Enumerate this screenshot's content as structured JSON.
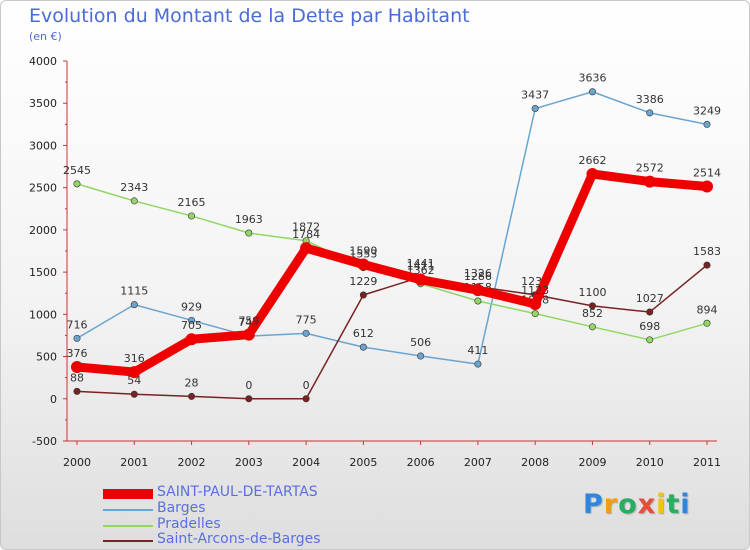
{
  "header": {
    "title": "Evolution du Montant de la Dette par Habitant",
    "subtitle": "(en €)"
  },
  "logo": {
    "text": "Proxiti",
    "letter_colors": [
      "#2e86de",
      "#f39c12",
      "#27ae60",
      "#e74c3c",
      "#f1c40f",
      "#27ae60",
      "#2e86de"
    ]
  },
  "chart_data": {
    "type": "line",
    "x": [
      "2000",
      "2001",
      "2002",
      "2003",
      "2004",
      "2005",
      "2006",
      "2007",
      "2008",
      "2009",
      "2010",
      "2011"
    ],
    "ylim": [
      -500,
      4000
    ],
    "yticks": [
      -500,
      0,
      500,
      1000,
      1500,
      2000,
      2500,
      3000,
      3500,
      4000
    ],
    "grid": false,
    "legend_position": "bottom-left",
    "series": [
      {
        "name": "SAINT-PAUL-DE-TARTAS",
        "color": "#ee0000",
        "thick": true,
        "values": [
          376,
          316,
          705,
          759,
          1784,
          1590,
          1411,
          1286,
          1123,
          2662,
          2572,
          2514
        ]
      },
      {
        "name": "Barges",
        "color": "#6aa5cf",
        "thick": false,
        "values": [
          716,
          1115,
          929,
          742,
          775,
          612,
          506,
          411,
          3437,
          3636,
          3386,
          3249
        ]
      },
      {
        "name": "Pradelles",
        "color": "#92d665",
        "thick": false,
        "values": [
          2545,
          2343,
          2165,
          1963,
          1872,
          1553,
          1362,
          1158,
          1008,
          852,
          698,
          894
        ]
      },
      {
        "name": "Saint-Arcons-de-Barges",
        "color": "#7a2222",
        "thick": false,
        "values": [
          88,
          54,
          28,
          0,
          0,
          1229,
          1441,
          1326,
          1231,
          1100,
          1027,
          1583
        ]
      }
    ]
  }
}
